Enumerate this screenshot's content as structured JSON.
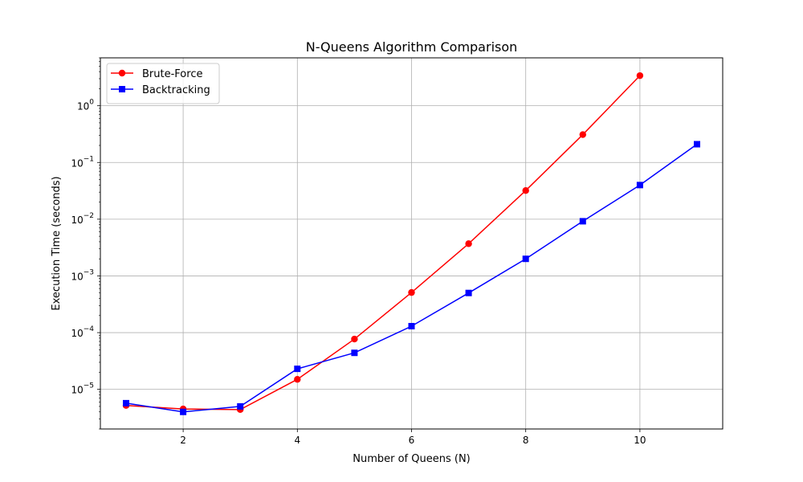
{
  "chart_data": {
    "type": "line",
    "title": "N-Queens Algorithm Comparison",
    "xlabel": "Number of Queens (N)",
    "ylabel": "Execution Time (seconds)",
    "xlim": [
      0.55,
      11.45
    ],
    "ylim": [
      2e-06,
      7
    ],
    "y_scale": "log",
    "x_ticks": [
      2,
      4,
      6,
      8,
      10
    ],
    "y_ticks": [
      {
        "value": 1e-05,
        "base": "10",
        "exp": "−5"
      },
      {
        "value": 0.0001,
        "base": "10",
        "exp": "−4"
      },
      {
        "value": 0.001,
        "base": "10",
        "exp": "−3"
      },
      {
        "value": 0.01,
        "base": "10",
        "exp": "−2"
      },
      {
        "value": 0.1,
        "base": "10",
        "exp": "−1"
      },
      {
        "value": 1,
        "base": "10",
        "exp": "0"
      }
    ],
    "grid": true,
    "legend_position": "top-left",
    "series": [
      {
        "name": "Brute-Force",
        "color": "#ff0000",
        "marker": "circle",
        "x": [
          1,
          2,
          3,
          4,
          5,
          6,
          7,
          8,
          9,
          10
        ],
        "y": [
          5.2e-06,
          4.5e-06,
          4.4e-06,
          1.5e-05,
          7.7e-05,
          0.00051,
          0.0037,
          0.032,
          0.31,
          3.4
        ]
      },
      {
        "name": "Backtracking",
        "color": "#0000ff",
        "marker": "square",
        "x": [
          1,
          2,
          3,
          4,
          5,
          6,
          7,
          8,
          9,
          10,
          11
        ],
        "y": [
          5.7e-06,
          4e-06,
          5e-06,
          2.3e-05,
          4.4e-05,
          0.00013,
          0.0005,
          0.002,
          0.0092,
          0.04,
          0.21
        ]
      }
    ]
  }
}
